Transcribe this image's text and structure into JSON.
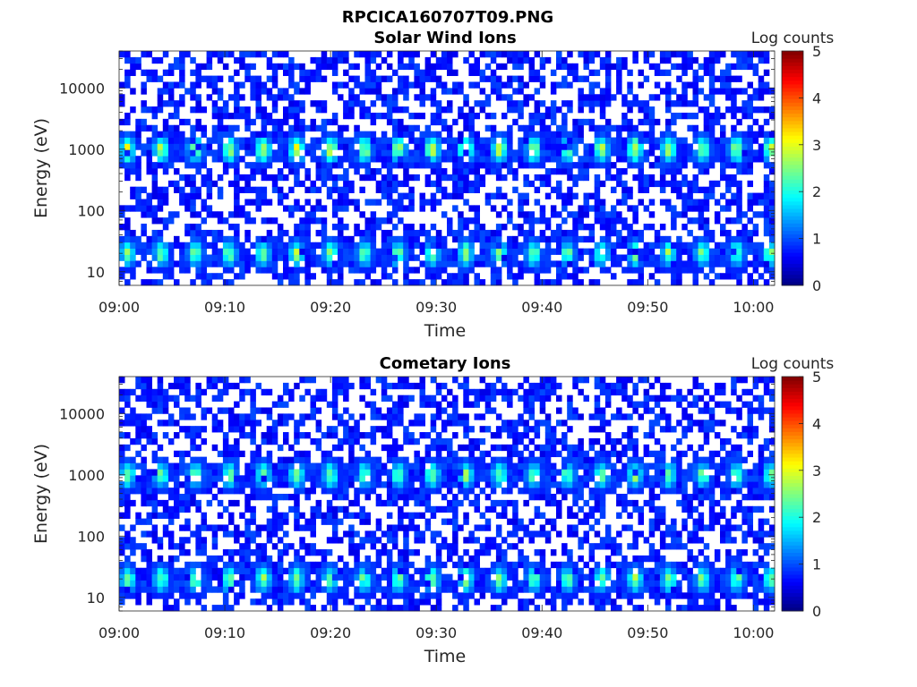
{
  "figure_title": "RPCICA160707T09.PNG",
  "chart_data": [
    {
      "type": "heatmap",
      "title": "Solar Wind Ions",
      "xlabel": "Time",
      "ylabel": "Energy (eV)",
      "x_range": [
        "09:00",
        "10:02"
      ],
      "x_ticks": [
        "09:00",
        "09:10",
        "09:20",
        "09:30",
        "09:40",
        "09:50",
        "10:00"
      ],
      "y_scale": "log",
      "y_range": [
        6,
        40000
      ],
      "y_ticks": [
        "10",
        "100",
        "1000",
        "10000"
      ],
      "y_tick_values": [
        10,
        100,
        1000,
        10000
      ],
      "colorbar": {
        "label": "Log counts",
        "range": [
          0,
          5
        ],
        "ticks": [
          "0",
          "1",
          "2",
          "3",
          "4",
          "5"
        ],
        "colormap": "jet"
      },
      "features": {
        "sweep_period_min": 3.2,
        "bands": [
          {
            "energy_eV": 1000,
            "peak_log_counts": 3.0
          },
          {
            "energy_eV": 20,
            "peak_log_counts": 2.5
          }
        ]
      }
    },
    {
      "type": "heatmap",
      "title": "Cometary Ions",
      "xlabel": "Time",
      "ylabel": "Energy (eV)",
      "x_range": [
        "09:00",
        "10:02"
      ],
      "x_ticks": [
        "09:00",
        "09:10",
        "09:20",
        "09:30",
        "09:40",
        "09:50",
        "10:00"
      ],
      "y_scale": "log",
      "y_range": [
        6,
        40000
      ],
      "y_ticks": [
        "10",
        "100",
        "1000",
        "10000"
      ],
      "y_tick_values": [
        10,
        100,
        1000,
        10000
      ],
      "colorbar": {
        "label": "Log counts",
        "range": [
          0,
          5
        ],
        "ticks": [
          "0",
          "1",
          "2",
          "3",
          "4",
          "5"
        ],
        "colormap": "jet"
      },
      "features": {
        "sweep_period_min": 3.2,
        "bands": [
          {
            "energy_eV": 1000,
            "peak_log_counts": 2.5
          },
          {
            "energy_eV": 20,
            "peak_log_counts": 2.5
          }
        ]
      }
    }
  ]
}
